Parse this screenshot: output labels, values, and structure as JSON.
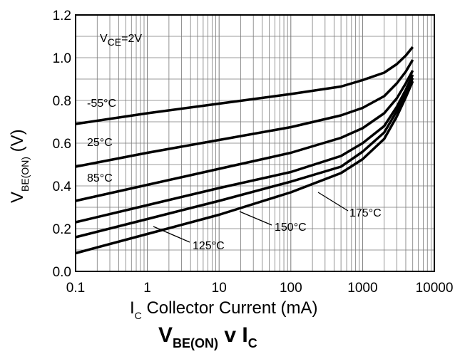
{
  "chart_data": {
    "type": "line",
    "title": {
      "main": "V",
      "sub": "BE(ON)",
      "mid": " v I",
      "sub2": "C"
    },
    "xlabel": {
      "main": "I",
      "sub": "C",
      "rest": "  Collector Current (mA)"
    },
    "ylabel": {
      "main": "V",
      "sub": "BE(ON)",
      "rest": " (V)"
    },
    "xscale": "log",
    "xlim": [
      0.1,
      10000
    ],
    "ylim": [
      0.0,
      1.2
    ],
    "xticks": [
      "0.1",
      "1",
      "10",
      "100",
      "1000",
      "10000"
    ],
    "yticks": [
      "0.0",
      "0.2",
      "0.4",
      "0.6",
      "0.8",
      "1.0",
      "1.2"
    ],
    "grid": true,
    "condition": {
      "main": "V",
      "sub": "CE",
      "rest": "=2V"
    },
    "series": [
      {
        "name": "-55°C",
        "x": [
          0.1,
          1,
          10,
          100,
          500,
          1000,
          2000,
          3000,
          4000,
          5000
        ],
        "y": [
          0.69,
          0.74,
          0.785,
          0.83,
          0.865,
          0.895,
          0.93,
          0.97,
          1.01,
          1.05
        ]
      },
      {
        "name": "25°C",
        "x": [
          0.1,
          1,
          10,
          100,
          500,
          1000,
          2000,
          3000,
          4000,
          5000
        ],
        "y": [
          0.49,
          0.555,
          0.615,
          0.675,
          0.73,
          0.765,
          0.82,
          0.88,
          0.935,
          0.99
        ]
      },
      {
        "name": "85°C",
        "x": [
          0.1,
          1,
          10,
          100,
          500,
          1000,
          2000,
          3000,
          4000,
          5000
        ],
        "y": [
          0.33,
          0.405,
          0.48,
          0.555,
          0.625,
          0.67,
          0.74,
          0.81,
          0.88,
          0.94
        ]
      },
      {
        "name": "125°C",
        "x": [
          0.1,
          1,
          10,
          100,
          500,
          1000,
          2000,
          3000,
          4000,
          5000
        ],
        "y": [
          0.23,
          0.31,
          0.39,
          0.465,
          0.54,
          0.6,
          0.68,
          0.77,
          0.85,
          0.92
        ]
      },
      {
        "name": "150°C",
        "x": [
          0.1,
          1,
          10,
          100,
          500,
          1000,
          2000,
          3000,
          4000,
          5000
        ],
        "y": [
          0.16,
          0.245,
          0.33,
          0.42,
          0.49,
          0.56,
          0.65,
          0.75,
          0.83,
          0.905
        ]
      },
      {
        "name": "175°C",
        "x": [
          0.1,
          1,
          10,
          100,
          500,
          1000,
          2000,
          3000,
          4000,
          5000
        ],
        "y": [
          0.085,
          0.175,
          0.265,
          0.37,
          0.46,
          0.525,
          0.62,
          0.725,
          0.815,
          0.89
        ]
      }
    ],
    "series_labels": [
      "-55°C",
      "25°C",
      "85°C",
      "125°C",
      "150°C",
      "175°C"
    ]
  }
}
